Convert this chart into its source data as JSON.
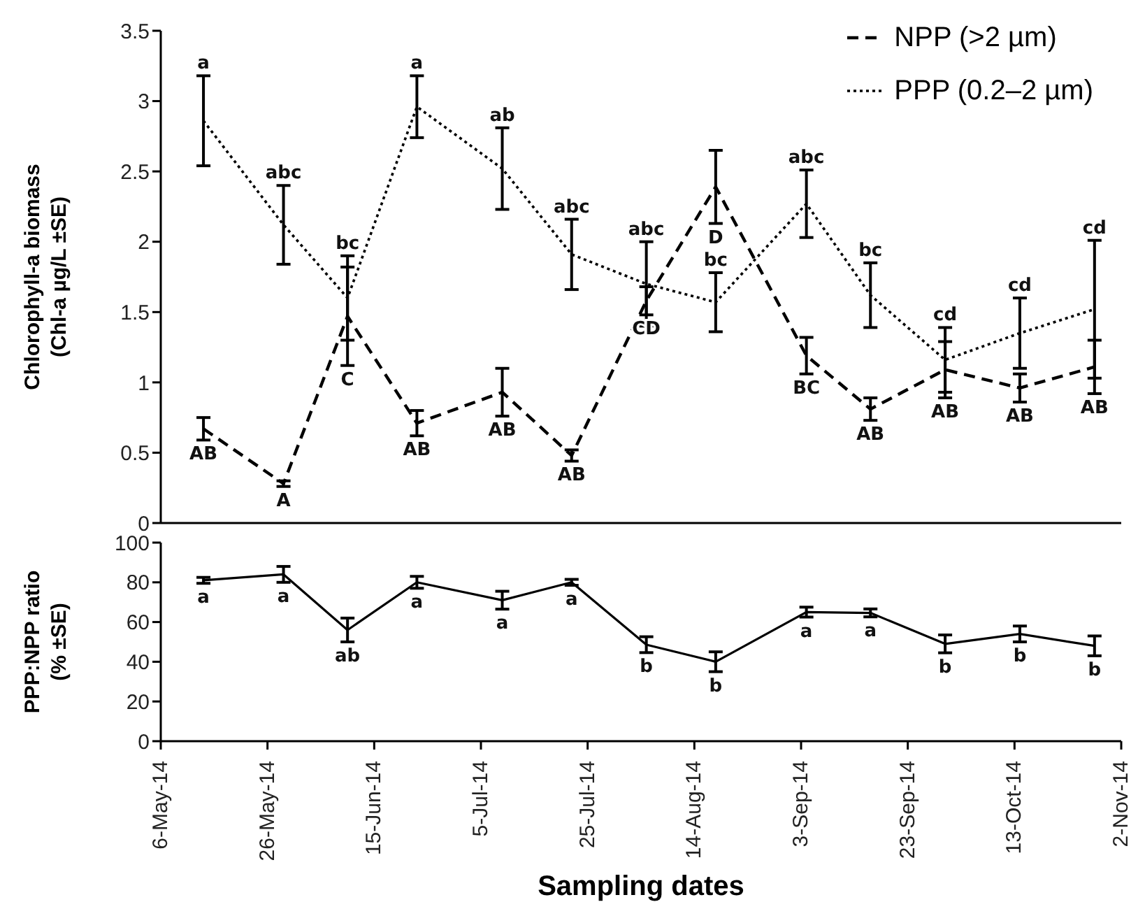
{
  "chart_data": [
    {
      "type": "line",
      "ylabel": "Chlorophyll-a biomass (Chl-a µg/L ±SE)",
      "x": [
        "2014-05-14",
        "2014-05-29",
        "2014-06-10",
        "2014-06-23",
        "2014-07-09",
        "2014-07-22",
        "2014-08-05",
        "2014-08-18",
        "2014-09-04",
        "2014-09-16",
        "2014-09-30",
        "2014-10-14",
        "2014-10-28"
      ],
      "series": [
        {
          "name": "NPP (>2 µm)",
          "color": "#000000",
          "line_style": "dashed",
          "values": [
            0.67,
            0.28,
            1.47,
            0.71,
            0.93,
            0.48,
            1.58,
            2.39,
            1.19,
            0.81,
            1.09,
            0.96,
            1.11
          ],
          "errors": [
            0.08,
            0.02,
            0.35,
            0.09,
            0.17,
            0.04,
            0.1,
            0.26,
            0.13,
            0.08,
            0.2,
            0.1,
            0.19
          ]
        },
        {
          "name": "PPP (0.2–2 µm)",
          "color": "#000000",
          "line_style": "dotted",
          "values": [
            2.86,
            2.12,
            1.6,
            2.96,
            2.52,
            1.91,
            1.7,
            1.57,
            2.27,
            1.62,
            1.16,
            1.35,
            1.52
          ],
          "errors": [
            0.32,
            0.28,
            0.3,
            0.22,
            0.29,
            0.25,
            0.3,
            0.21,
            0.24,
            0.23,
            0.23,
            0.25,
            0.49
          ]
        }
      ],
      "xlim": [
        "2014-05-06",
        "2014-11-02"
      ],
      "xticks": [
        {
          "value": "2014-05-06",
          "label": null
        },
        {
          "value": "2014-05-26",
          "label": null
        },
        {
          "value": "2014-06-15",
          "label": null
        },
        {
          "value": "2014-07-05",
          "label": null
        },
        {
          "value": "2014-07-25",
          "label": null
        },
        {
          "value": "2014-08-14",
          "label": null
        },
        {
          "value": "2014-09-03",
          "label": null
        },
        {
          "value": "2014-09-23",
          "label": null
        },
        {
          "value": "2014-10-13",
          "label": null
        },
        {
          "value": "2014-11-02",
          "label": null
        }
      ],
      "ylim": [
        0,
        3.5
      ],
      "yticks": [
        0,
        0.5,
        1,
        1.5,
        2,
        2.5,
        3,
        3.5
      ],
      "tick_labels": "y",
      "legend": "top right",
      "marker": "none",
      "annotations": [
        {
          "text": "a",
          "x": "2014-05-14",
          "y": 3.18
        },
        {
          "text": "abc",
          "x": "2014-05-29",
          "y": 2.4
        },
        {
          "text": "bc",
          "x": "2014-06-10",
          "y": 1.9
        },
        {
          "text": "a",
          "x": "2014-06-23",
          "y": 3.18
        },
        {
          "text": "ab",
          "x": "2014-07-09",
          "y": 2.81
        },
        {
          "text": "abc",
          "x": "2014-07-22",
          "y": 2.16
        },
        {
          "text": "abc",
          "x": "2014-08-05",
          "y": 2.0
        },
        {
          "text": "bc",
          "x": "2014-08-18",
          "y": 1.78
        },
        {
          "text": "abc",
          "x": "2014-09-04",
          "y": 2.51
        },
        {
          "text": "bc",
          "x": "2014-09-16",
          "y": 1.85
        },
        {
          "text": "cd",
          "x": "2014-09-30",
          "y": 1.39
        },
        {
          "text": "cd",
          "x": "2014-10-14",
          "y": 1.6
        },
        {
          "text": "cd",
          "x": "2014-10-28",
          "y": 2.01
        },
        {
          "text": "AB",
          "x": "2014-05-14",
          "y": 0.59
        },
        {
          "text": "A",
          "x": "2014-05-29",
          "y": 0.26
        },
        {
          "text": "C",
          "x": "2014-06-10",
          "y": 1.12
        },
        {
          "text": "AB",
          "x": "2014-06-23",
          "y": 0.62
        },
        {
          "text": "AB",
          "x": "2014-07-09",
          "y": 0.76
        },
        {
          "text": "AB",
          "x": "2014-07-22",
          "y": 0.44
        },
        {
          "text": "CD",
          "x": "2014-08-05",
          "y": 1.48
        },
        {
          "text": "D",
          "x": "2014-08-18",
          "y": 2.13
        },
        {
          "text": "BC",
          "x": "2014-09-04",
          "y": 1.06
        },
        {
          "text": "AB",
          "x": "2014-09-16",
          "y": 0.73
        },
        {
          "text": "AB",
          "x": "2014-09-30",
          "y": 0.89
        },
        {
          "text": "AB",
          "x": "2014-10-14",
          "y": 0.86
        },
        {
          "text": "AB",
          "x": "2014-10-28",
          "y": 0.92
        }
      ]
    },
    {
      "type": "line",
      "xlabel": "Sampling dates",
      "ylabel": "PPP:NPP ratio (% ±SE)",
      "x": [
        "2014-05-14",
        "2014-05-29",
        "2014-06-10",
        "2014-06-23",
        "2014-07-09",
        "2014-07-22",
        "2014-08-05",
        "2014-08-18",
        "2014-09-04",
        "2014-09-16",
        "2014-09-30",
        "2014-10-14",
        "2014-10-28"
      ],
      "series": [
        {
          "color": "#000000",
          "line_style": "solid",
          "values": [
            81,
            84,
            56,
            80,
            71,
            80,
            48.6,
            40,
            65,
            64.6,
            49,
            54,
            48
          ],
          "errors": [
            1.5,
            4,
            6,
            3,
            4.5,
            1.5,
            4,
            5,
            2.5,
            2,
            4.5,
            4,
            5
          ]
        }
      ],
      "xlim": [
        "2014-05-06",
        "2014-11-02"
      ],
      "xticks": [
        {
          "value": "2014-05-06",
          "label": "6-May-14"
        },
        {
          "value": "2014-05-26",
          "label": "26-May-14"
        },
        {
          "value": "2014-06-15",
          "label": "15-Jun-14"
        },
        {
          "value": "2014-07-05",
          "label": "5-Jul-14"
        },
        {
          "value": "2014-07-25",
          "label": "25-Jul-14"
        },
        {
          "value": "2014-08-14",
          "label": "14-Aug-14"
        },
        {
          "value": "2014-09-03",
          "label": "3-Sep-14"
        },
        {
          "value": "2014-09-23",
          "label": "23-Sep-14"
        },
        {
          "value": "2014-10-13",
          "label": "13-Oct-14"
        },
        {
          "value": "2014-11-02",
          "label": "2-Nov-14"
        }
      ],
      "ylim": [
        0,
        100
      ],
      "yticks": [
        0,
        20,
        40,
        60,
        80,
        100
      ],
      "marker": "none",
      "annotations": [
        {
          "text": "a",
          "x": "2014-05-14",
          "y": 79.5
        },
        {
          "text": "a",
          "x": "2014-05-29",
          "y": 80
        },
        {
          "text": "ab",
          "x": "2014-06-10",
          "y": 50
        },
        {
          "text": "a",
          "x": "2014-06-23",
          "y": 77
        },
        {
          "text": "a",
          "x": "2014-07-09",
          "y": 66.5
        },
        {
          "text": "a",
          "x": "2014-07-22",
          "y": 78.5
        },
        {
          "text": "b",
          "x": "2014-08-05",
          "y": 44.6
        },
        {
          "text": "b",
          "x": "2014-08-18",
          "y": 35
        },
        {
          "text": "a",
          "x": "2014-09-04",
          "y": 62.5
        },
        {
          "text": "a",
          "x": "2014-09-16",
          "y": 62.6
        },
        {
          "text": "b",
          "x": "2014-09-30",
          "y": 44.5
        },
        {
          "text": "b",
          "x": "2014-10-14",
          "y": 50
        },
        {
          "text": "b",
          "x": "2014-10-28",
          "y": 43
        }
      ]
    }
  ]
}
